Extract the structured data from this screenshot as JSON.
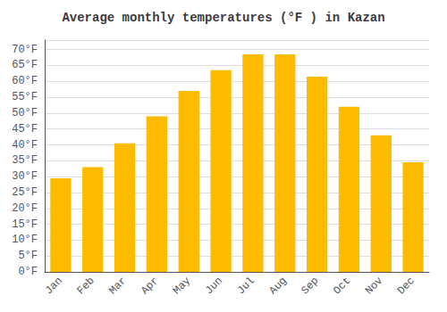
{
  "chart_data": {
    "type": "bar",
    "title": "Average monthly temperatures (°F ) in Kazan",
    "categories": [
      "Jan",
      "Feb",
      "Mar",
      "Apr",
      "May",
      "Jun",
      "Jul",
      "Aug",
      "Sep",
      "Oct",
      "Nov",
      "Dec"
    ],
    "values": [
      29.5,
      33.0,
      40.5,
      49.0,
      57.0,
      63.5,
      68.5,
      68.5,
      61.5,
      52.0,
      43.0,
      34.5
    ],
    "color": "#FFBB00",
    "ylim": [
      0,
      73
    ],
    "yticks": [
      {
        "value": 0,
        "label": "0°F"
      },
      {
        "value": 5,
        "label": "5°F"
      },
      {
        "value": 10,
        "label": "10°F"
      },
      {
        "value": 15,
        "label": "15°F"
      },
      {
        "value": 20,
        "label": "20°F"
      },
      {
        "value": 25,
        "label": "25°F"
      },
      {
        "value": 30,
        "label": "30°F"
      },
      {
        "value": 35,
        "label": "35°F"
      },
      {
        "value": 40,
        "label": "40°F"
      },
      {
        "value": 45,
        "label": "45°F"
      },
      {
        "value": 50,
        "label": "50°F"
      },
      {
        "value": 55,
        "label": "55°F"
      },
      {
        "value": 60,
        "label": "60°F"
      },
      {
        "value": 65,
        "label": "65°F"
      },
      {
        "value": 70,
        "label": "70°F"
      }
    ],
    "grid": true
  }
}
